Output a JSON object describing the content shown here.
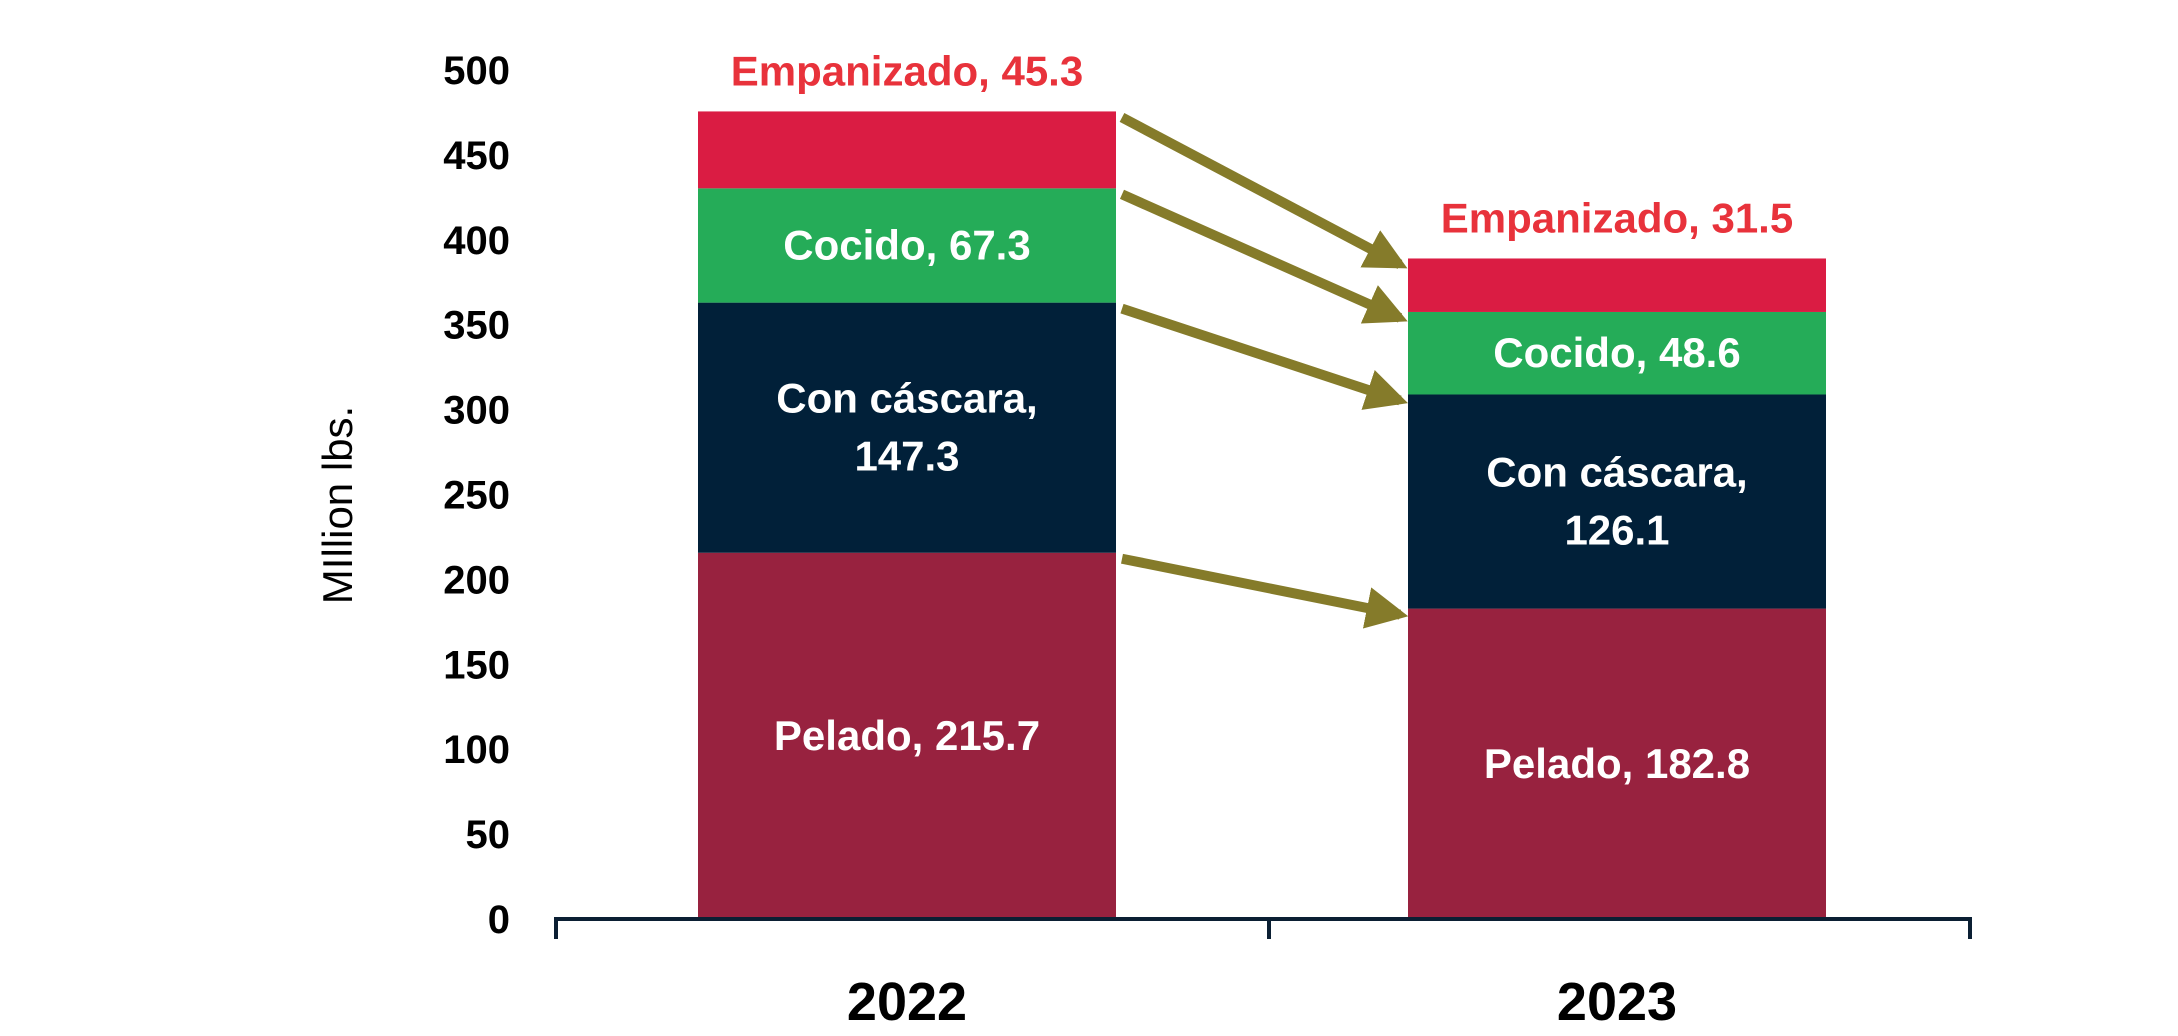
{
  "chart_data": {
    "type": "bar",
    "stacked": true,
    "title": "",
    "xlabel": "",
    "ylabel": "MIllion lbs.",
    "ylim": [
      0,
      500
    ],
    "yticks": [
      0,
      50,
      100,
      150,
      200,
      250,
      300,
      350,
      400,
      450,
      500
    ],
    "categories": [
      "2022",
      "2023"
    ],
    "series": [
      {
        "name": "Pelado",
        "color": "#98223F",
        "values": [
          215.7,
          182.8
        ],
        "labels": [
          [
            "Pelado, 215.7"
          ],
          [
            "Pelado, 182.8"
          ]
        ],
        "label_position": "inside"
      },
      {
        "name": "Con cáscara",
        "color": "#012039",
        "values": [
          147.3,
          126.1
        ],
        "labels": [
          [
            "Con cáscara,",
            "147.3"
          ],
          [
            "Con cáscara,",
            "126.1"
          ]
        ],
        "label_position": "inside"
      },
      {
        "name": "Cocido",
        "color": "#25AC58",
        "values": [
          67.3,
          48.6
        ],
        "labels": [
          [
            "Cocido, 67.3"
          ],
          [
            "Cocido, 48.6"
          ]
        ],
        "label_position": "inside"
      },
      {
        "name": "Empanizado",
        "color": "#DA1C43",
        "label_color": "#E8323B",
        "values": [
          45.3,
          31.5
        ],
        "labels": [
          [
            "Empanizado, 45.3"
          ],
          [
            "Empanizado, 31.5"
          ]
        ],
        "label_position": "above"
      }
    ],
    "annotations": {
      "type": "arrows",
      "from": "2022",
      "to": "2023",
      "color": "#857B2A",
      "description": "arrows connect top of each segment in 2022 to corresponding segment top in 2023"
    },
    "axis_color": "#0B1F33"
  }
}
